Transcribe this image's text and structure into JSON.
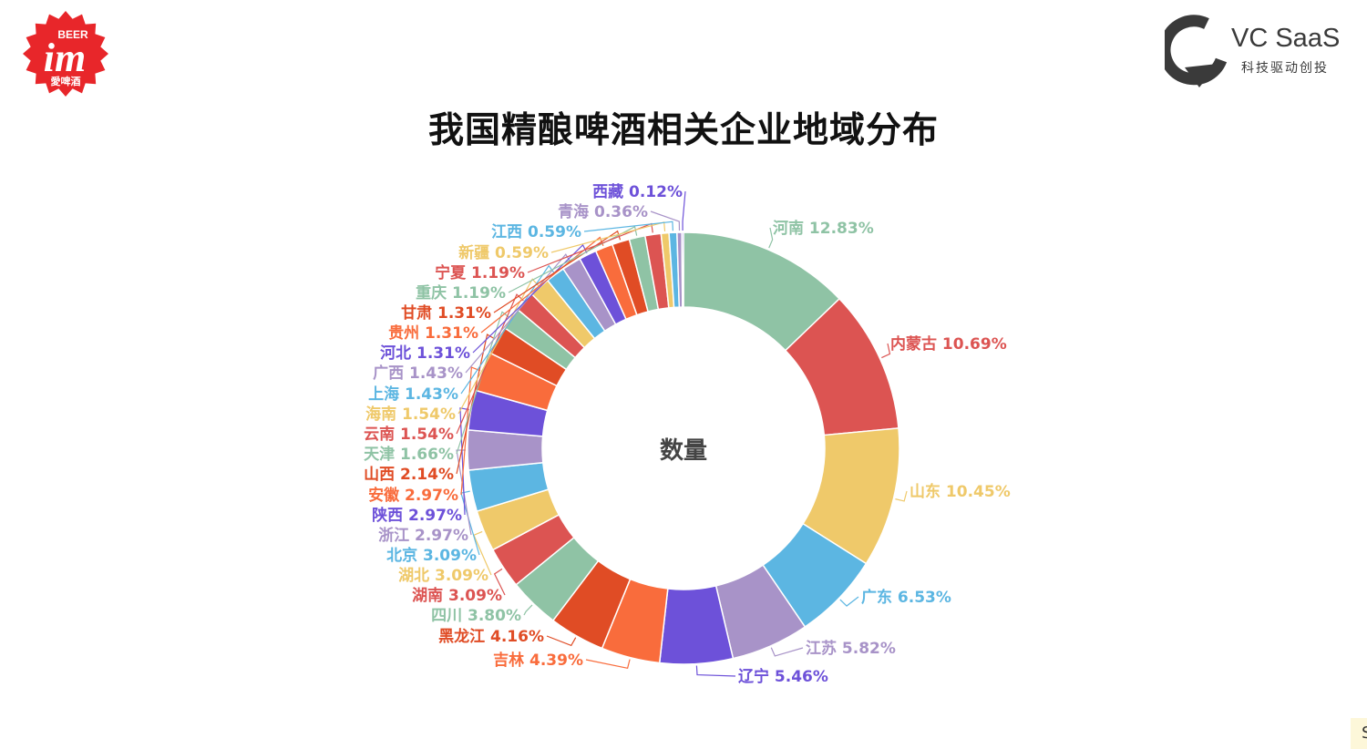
{
  "title": "我国精酿啤酒相关企业地域分布",
  "logo_left": {
    "brand": "im",
    "tag": "BEER",
    "cn": "愛啤酒"
  },
  "logo_right": {
    "name": "VC SaaS",
    "slogan": "科技驱动创投"
  },
  "corner_text": "S",
  "chart_data": {
    "type": "pie",
    "center_label": "数量",
    "slices": [
      {
        "label": "河南",
        "percent": "12.83%",
        "value": 12.83,
        "color": "#8fc3a5"
      },
      {
        "label": "内蒙古",
        "percent": "10.69%",
        "value": 10.69,
        "color": "#dc5452"
      },
      {
        "label": "山东",
        "percent": "10.45%",
        "value": 10.45,
        "color": "#efc96a"
      },
      {
        "label": "广东",
        "percent": "6.53%",
        "value": 6.53,
        "color": "#5cb6e2"
      },
      {
        "label": "江苏",
        "percent": "5.82%",
        "value": 5.82,
        "color": "#a893c8"
      },
      {
        "label": "辽宁",
        "percent": "5.46%",
        "value": 5.46,
        "color": "#6d51d9"
      },
      {
        "label": "吉林",
        "percent": "4.39%",
        "value": 4.39,
        "color": "#f96c3c"
      },
      {
        "label": "黑龙江",
        "percent": "4.16%",
        "value": 4.16,
        "color": "#e04c25"
      },
      {
        "label": "四川",
        "percent": "3.80%",
        "value": 3.8,
        "color": "#8fc3a5"
      },
      {
        "label": "湖南",
        "percent": "3.09%",
        "value": 3.09,
        "color": "#dc5452"
      },
      {
        "label": "湖北",
        "percent": "3.09%",
        "value": 3.09,
        "color": "#efc96a"
      },
      {
        "label": "北京",
        "percent": "3.09%",
        "value": 3.09,
        "color": "#5cb6e2"
      },
      {
        "label": "浙江",
        "percent": "2.97%",
        "value": 2.97,
        "color": "#a893c8"
      },
      {
        "label": "陕西",
        "percent": "2.97%",
        "value": 2.97,
        "color": "#6d51d9"
      },
      {
        "label": "安徽",
        "percent": "2.97%",
        "value": 2.97,
        "color": "#f96c3c"
      },
      {
        "label": "山西",
        "percent": "2.14%",
        "value": 2.14,
        "color": "#e04c25"
      },
      {
        "label": "天津",
        "percent": "1.66%",
        "value": 1.66,
        "color": "#8fc3a5"
      },
      {
        "label": "云南",
        "percent": "1.54%",
        "value": 1.54,
        "color": "#dc5452"
      },
      {
        "label": "海南",
        "percent": "1.54%",
        "value": 1.54,
        "color": "#efc96a"
      },
      {
        "label": "上海",
        "percent": "1.43%",
        "value": 1.43,
        "color": "#5cb6e2"
      },
      {
        "label": "广西",
        "percent": "1.43%",
        "value": 1.43,
        "color": "#a893c8"
      },
      {
        "label": "河北",
        "percent": "1.31%",
        "value": 1.31,
        "color": "#6d51d9"
      },
      {
        "label": "贵州",
        "percent": "1.31%",
        "value": 1.31,
        "color": "#f96c3c"
      },
      {
        "label": "甘肃",
        "percent": "1.31%",
        "value": 1.31,
        "color": "#e04c25"
      },
      {
        "label": "重庆",
        "percent": "1.19%",
        "value": 1.19,
        "color": "#8fc3a5"
      },
      {
        "label": "宁夏",
        "percent": "1.19%",
        "value": 1.19,
        "color": "#dc5452"
      },
      {
        "label": "新疆",
        "percent": "0.59%",
        "value": 0.59,
        "color": "#efc96a"
      },
      {
        "label": "江西",
        "percent": "0.59%",
        "value": 0.59,
        "color": "#5cb6e2"
      },
      {
        "label": "青海",
        "percent": "0.36%",
        "value": 0.36,
        "color": "#a893c8"
      },
      {
        "label": "西藏",
        "percent": "0.12%",
        "value": 0.12,
        "color": "#6d51d9"
      }
    ]
  }
}
